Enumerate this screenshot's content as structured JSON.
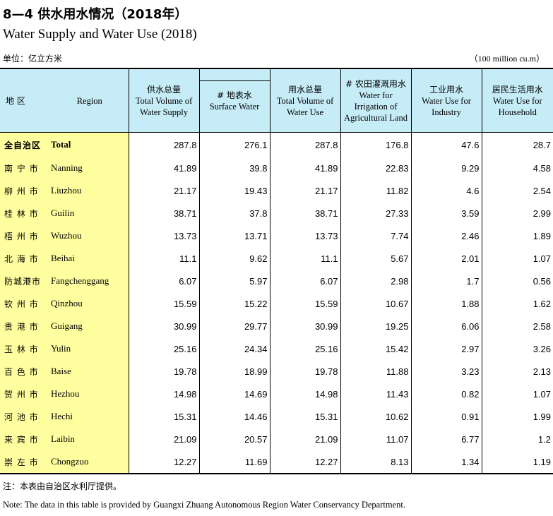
{
  "title_cn": "8—4  供水用水情况（2018年）",
  "title_en": "Water Supply and Water Use (2018)",
  "unit_cn": "单位：亿立方米",
  "unit_en": "（100 million cu.m）",
  "header": {
    "region_cn": "地  区",
    "region_en": "Region",
    "supply_cn": "供水总量",
    "supply_en": "Total Volume of Water Supply",
    "surface_cn": "# 地表水",
    "surface_en": "Surface Water",
    "use_cn": "用水总量",
    "use_en": "Total Volume of Water Use",
    "irrigation_cn": "# 农田灌溉用水",
    "irrigation_en": "Water for Irrigation of Agricultural Land",
    "industry_cn": "工业用水",
    "industry_en": "Water Use for Industry",
    "household_cn": "居民生活用水",
    "household_en": "Water Use for Household"
  },
  "rows": [
    {
      "cn": "全自治区",
      "en": "Total",
      "supply": "287.8",
      "surface": "276.1",
      "use": "287.8",
      "irrigation": "176.8",
      "industry": "47.6",
      "household": "28.7"
    },
    {
      "cn": "南 宁 市",
      "en": "Nanning",
      "supply": "41.89",
      "surface": "39.8",
      "use": "41.89",
      "irrigation": "22.83",
      "industry": "9.29",
      "household": "4.58"
    },
    {
      "cn": "柳 州 市",
      "en": "Liuzhou",
      "supply": "21.17",
      "surface": "19.43",
      "use": "21.17",
      "irrigation": "11.82",
      "industry": "4.6",
      "household": "2.54"
    },
    {
      "cn": "桂 林 市",
      "en": "Guilin",
      "supply": "38.71",
      "surface": "37.8",
      "use": "38.71",
      "irrigation": "27.33",
      "industry": "3.59",
      "household": "2.99"
    },
    {
      "cn": "梧 州 市",
      "en": "Wuzhou",
      "supply": "13.73",
      "surface": "13.71",
      "use": "13.73",
      "irrigation": "7.74",
      "industry": "2.46",
      "household": "1.89"
    },
    {
      "cn": "北 海 市",
      "en": "Beihai",
      "supply": "11.1",
      "surface": "9.62",
      "use": "11.1",
      "irrigation": "5.67",
      "industry": "2.01",
      "household": "1.07"
    },
    {
      "cn": "防城港市",
      "en": "Fangchenggang",
      "supply": "6.07",
      "surface": "5.97",
      "use": "6.07",
      "irrigation": "2.98",
      "industry": "1.7",
      "household": "0.56"
    },
    {
      "cn": "钦 州 市",
      "en": "Qinzhou",
      "supply": "15.59",
      "surface": "15.22",
      "use": "15.59",
      "irrigation": "10.67",
      "industry": "1.88",
      "household": "1.62"
    },
    {
      "cn": "贵 港 市",
      "en": "Guigang",
      "supply": "30.99",
      "surface": "29.77",
      "use": "30.99",
      "irrigation": "19.25",
      "industry": "6.06",
      "household": "2.58"
    },
    {
      "cn": "玉 林 市",
      "en": "Yulin",
      "supply": "25.16",
      "surface": "24.34",
      "use": "25.16",
      "irrigation": "15.42",
      "industry": "2.97",
      "household": "3.26"
    },
    {
      "cn": "百 色 市",
      "en": "Baise",
      "supply": "19.78",
      "surface": "18.99",
      "use": "19.78",
      "irrigation": "11.88",
      "industry": "3.23",
      "household": "2.13"
    },
    {
      "cn": "贺 州 市",
      "en": "Hezhou",
      "supply": "14.98",
      "surface": "14.69",
      "use": "14.98",
      "irrigation": "11.43",
      "industry": "0.82",
      "household": "1.07"
    },
    {
      "cn": "河 池 市",
      "en": "Hechi",
      "supply": "15.31",
      "surface": "14.46",
      "use": "15.31",
      "irrigation": "10.62",
      "industry": "0.91",
      "household": "1.99"
    },
    {
      "cn": "来 宾 市",
      "en": "Laibin",
      "supply": "21.09",
      "surface": "20.57",
      "use": "21.09",
      "irrigation": "11.07",
      "industry": "6.77",
      "household": "1.2"
    },
    {
      "cn": "崇 左 市",
      "en": "Chongzuo",
      "supply": "12.27",
      "surface": "11.69",
      "use": "12.27",
      "irrigation": "8.13",
      "industry": "1.34",
      "household": "1.19"
    }
  ],
  "note_cn": "注：本表由自治区水利厅提供。",
  "note_en": "Note: The data in this table is provided by Guangxi Zhuang Autonomous Region Water Conservancy Department."
}
